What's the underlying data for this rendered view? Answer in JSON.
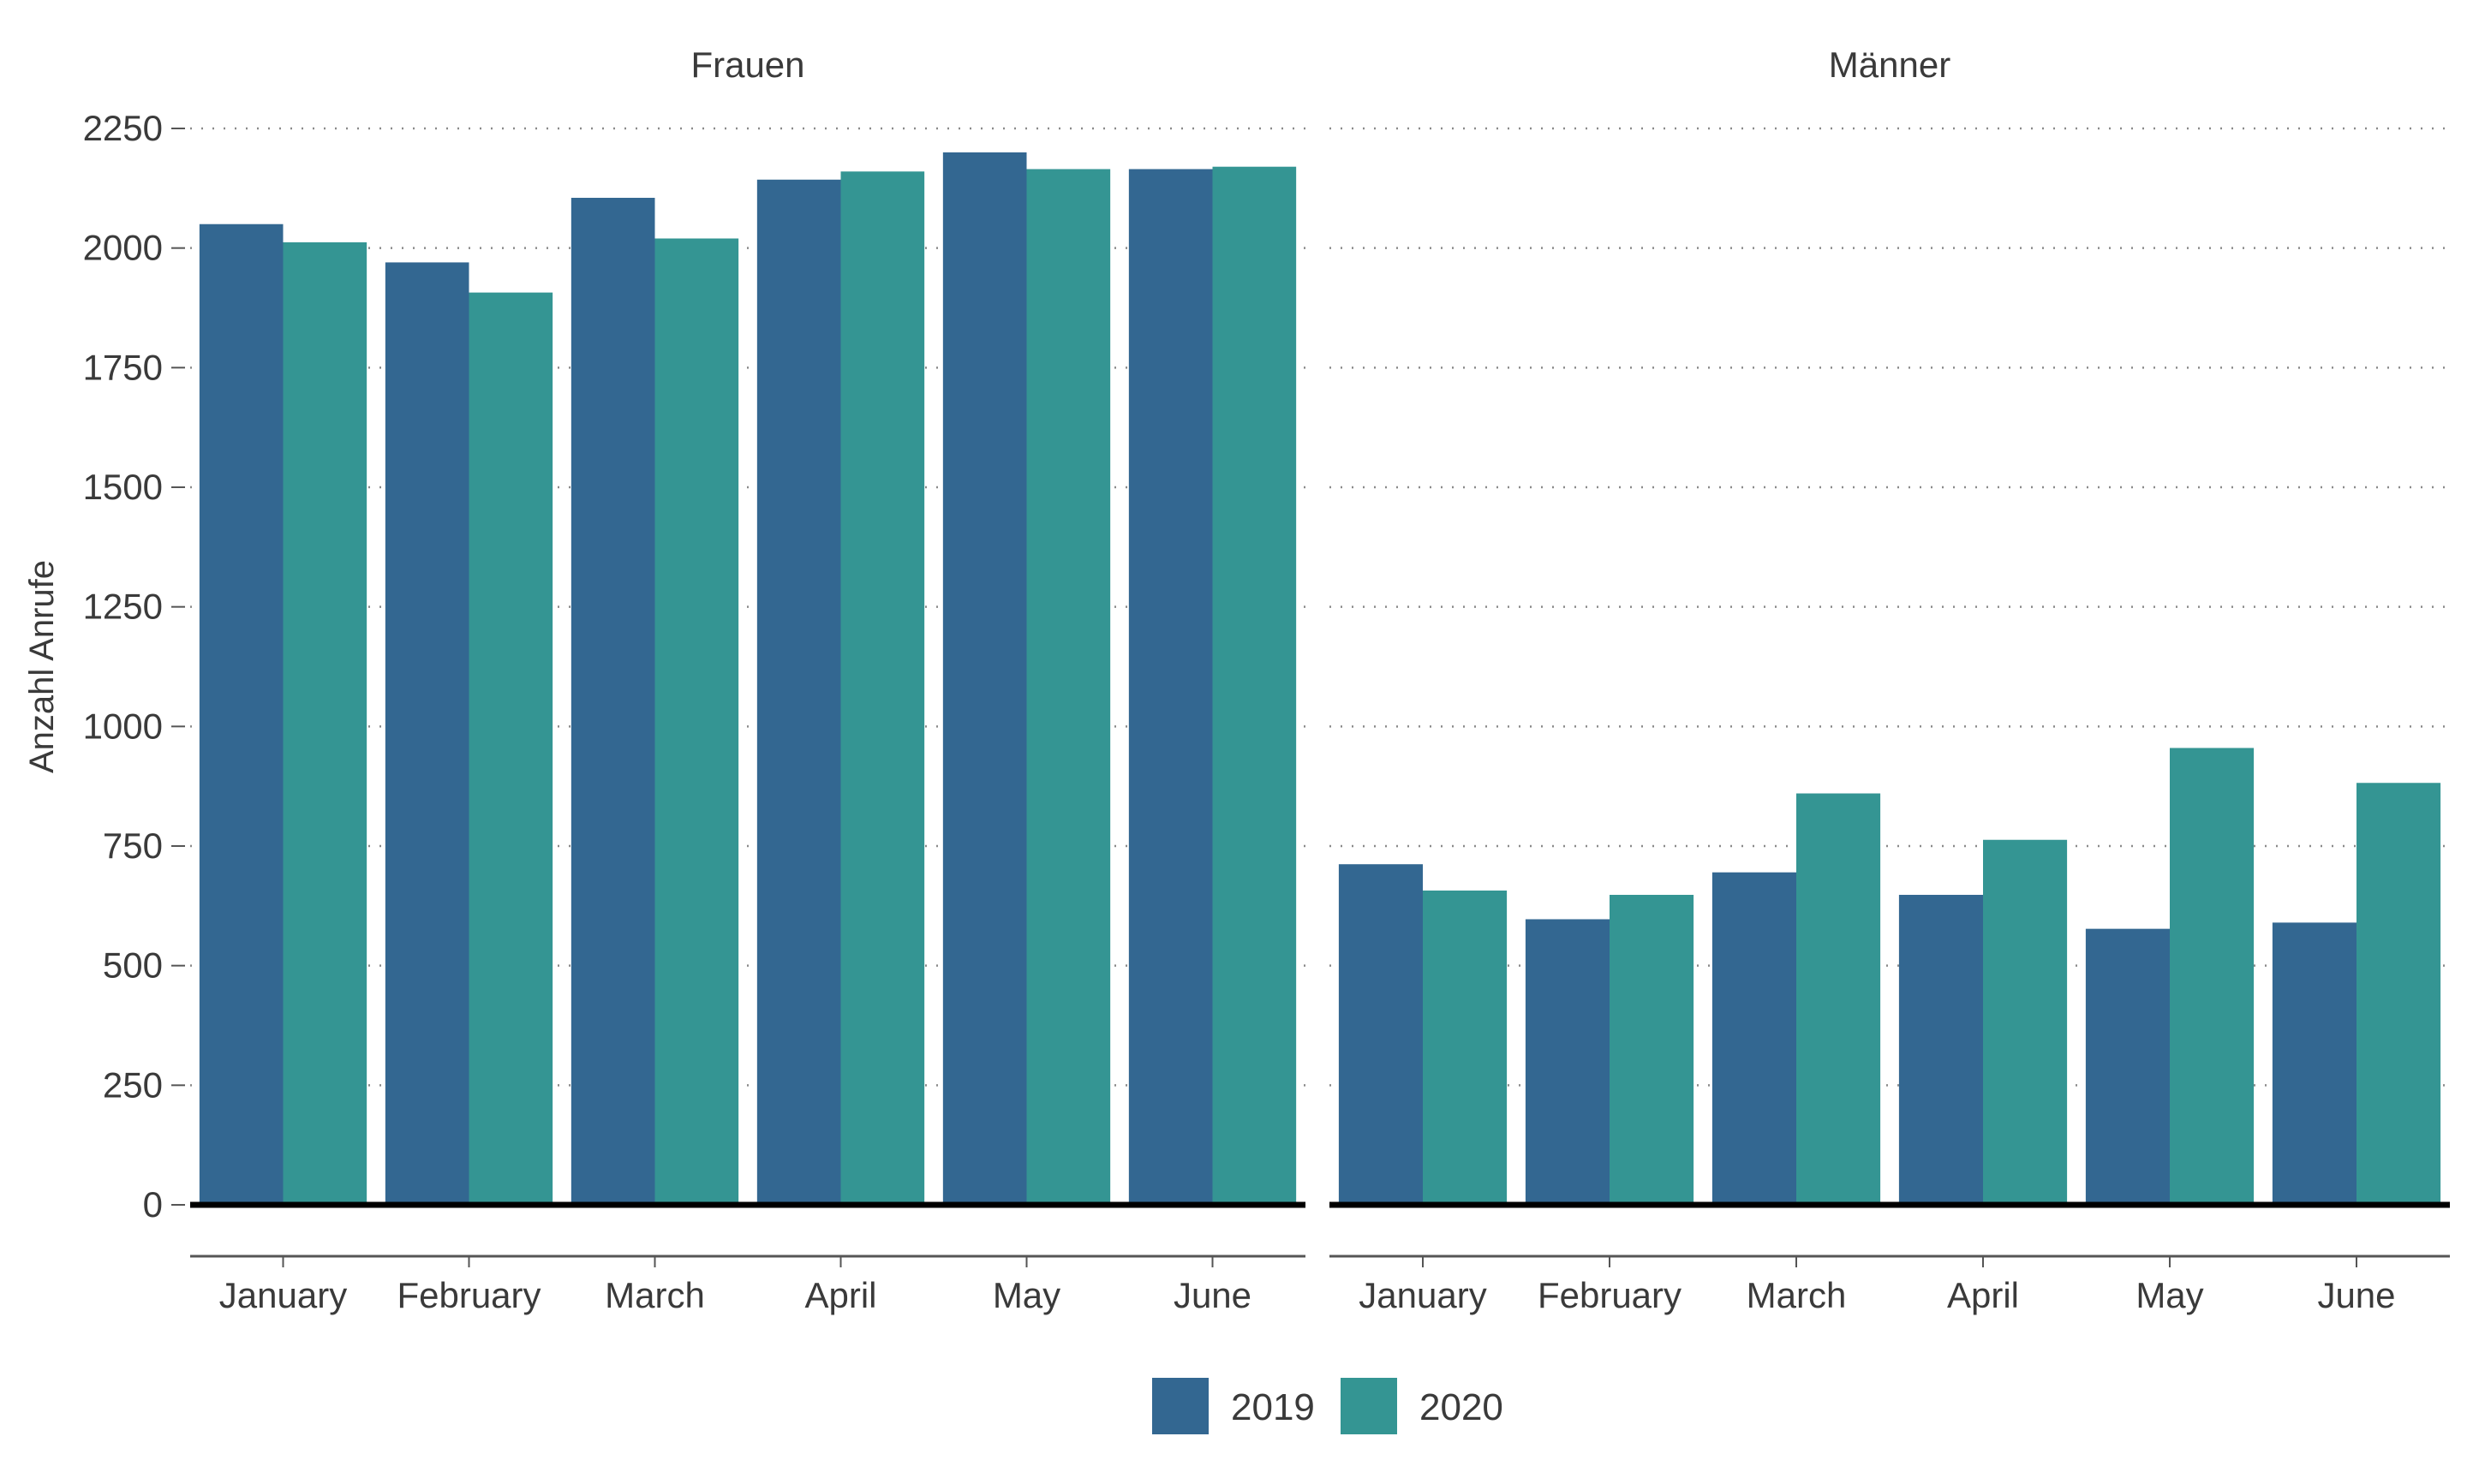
{
  "chart_data": {
    "type": "bar",
    "ylabel": "Anzahl Anrufe",
    "xlabel": "",
    "ylim": [
      0,
      2250
    ],
    "yticks": [
      0,
      250,
      500,
      750,
      1000,
      1250,
      1500,
      1750,
      2000,
      2250
    ],
    "ytick_labels": [
      "0",
      "250",
      "500",
      "750",
      "1000",
      "1250",
      "1500",
      "1750",
      "2000",
      "2250"
    ],
    "grid": "horizontal dotted",
    "legend_position": "bottom",
    "categories": [
      "January",
      "February",
      "March",
      "April",
      "May",
      "June"
    ],
    "series_meta": [
      {
        "name": "2019",
        "color": "#336791"
      },
      {
        "name": "2020",
        "color": "#349593"
      }
    ],
    "facets": [
      {
        "title": "Frauen",
        "series": [
          {
            "name": "2019",
            "values": [
              2050,
              1970,
              2105,
              2143,
              2200,
              2165
            ]
          },
          {
            "name": "2020",
            "values": [
              2012,
              1907,
              2020,
              2160,
              2165,
              2170
            ]
          }
        ]
      },
      {
        "title": "Männer",
        "series": [
          {
            "name": "2019",
            "values": [
              712,
              597,
              695,
              648,
              577,
              590
            ]
          },
          {
            "name": "2020",
            "values": [
              657,
              648,
              860,
              763,
              955,
              882
            ]
          }
        ]
      }
    ]
  }
}
